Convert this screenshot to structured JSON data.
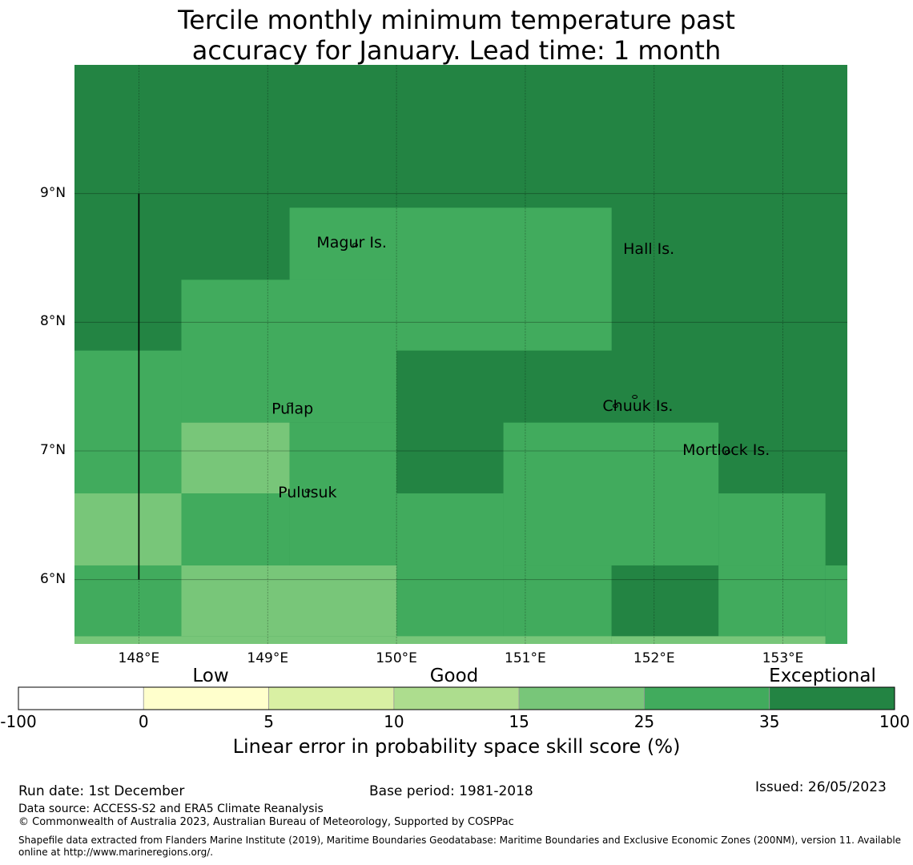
{
  "title": {
    "line1": "Tercile monthly minimum temperature past",
    "line2": "accuracy for January. Lead time: 1 month"
  },
  "map": {
    "lon_range": [
      147.5,
      153.5
    ],
    "lat_range": [
      5.5,
      10.0
    ],
    "lon_ticks": [
      148,
      149,
      150,
      151,
      152,
      153
    ],
    "lat_ticks": [
      6,
      7,
      8,
      9
    ],
    "lon_tick_labels": [
      "148°E",
      "149°E",
      "150°E",
      "151°E",
      "152°E",
      "153°E"
    ],
    "lat_tick_labels": [
      "6°N",
      "7°N",
      "8°N",
      "9°N"
    ],
    "grid_cells": [
      {
        "lon0": 147.5,
        "lon1": 153.5,
        "lat0": 5.5,
        "lat1": 10.0,
        "level": 35
      },
      {
        "lon0": 149.17,
        "lon1": 151.67,
        "lat0": 7.78,
        "lat1": 8.89,
        "level": 25
      },
      {
        "lon0": 148.33,
        "lon1": 150.0,
        "lat0": 7.22,
        "lat1": 8.33,
        "level": 25
      },
      {
        "lon0": 147.5,
        "lon1": 148.33,
        "lat0": 6.67,
        "lat1": 7.78,
        "level": 25
      },
      {
        "lon0": 148.33,
        "lon1": 149.17,
        "lat0": 6.67,
        "lat1": 7.22,
        "level": 15
      },
      {
        "lon0": 149.17,
        "lon1": 150.0,
        "lat0": 6.11,
        "lat1": 7.22,
        "level": 25
      },
      {
        "lon0": 148.33,
        "lon1": 149.17,
        "lat0": 6.11,
        "lat1": 6.67,
        "level": 25
      },
      {
        "lon0": 147.5,
        "lon1": 148.33,
        "lat0": 6.11,
        "lat1": 6.67,
        "level": 15
      },
      {
        "lon0": 150.0,
        "lon1": 150.83,
        "lat0": 5.5,
        "lat1": 6.67,
        "level": 25
      },
      {
        "lon0": 150.83,
        "lon1": 152.5,
        "lat0": 6.11,
        "lat1": 7.22,
        "level": 25
      },
      {
        "lon0": 152.5,
        "lon1": 153.33,
        "lat0": 6.11,
        "lat1": 6.67,
        "level": 25
      },
      {
        "lon0": 153.33,
        "lon1": 153.5,
        "lat0": 5.5,
        "lat1": 6.11,
        "level": 25
      },
      {
        "lon0": 147.5,
        "lon1": 148.33,
        "lat0": 5.56,
        "lat1": 6.11,
        "level": 25
      },
      {
        "lon0": 148.33,
        "lon1": 150.0,
        "lat0": 5.56,
        "lat1": 6.11,
        "level": 15
      },
      {
        "lon0": 150.83,
        "lon1": 151.67,
        "lat0": 5.5,
        "lat1": 6.11,
        "level": 25
      },
      {
        "lon0": 151.67,
        "lon1": 152.5,
        "lat0": 5.56,
        "lat1": 6.11,
        "level": 35
      },
      {
        "lon0": 152.5,
        "lon1": 153.33,
        "lat0": 5.56,
        "lat1": 6.11,
        "level": 25
      },
      {
        "lon0": 147.5,
        "lon1": 151.67,
        "lat0": 5.5,
        "lat1": 5.56,
        "level": 15
      },
      {
        "lon0": 151.67,
        "lon1": 153.33,
        "lat0": 5.5,
        "lat1": 5.56,
        "level": 15
      }
    ],
    "boundary_line": {
      "lon": 148.0,
      "lat0": 6.0,
      "lat1": 9.0
    },
    "places": [
      {
        "name": "Magur Is.",
        "lon": 149.38,
        "lat": 8.58
      },
      {
        "name": "Hall Is.",
        "lon": 151.76,
        "lat": 8.53
      },
      {
        "name": "Pulap",
        "lon": 149.03,
        "lat": 7.29
      },
      {
        "name": "Chuuk Is.",
        "lon": 151.6,
        "lat": 7.31
      },
      {
        "name": "Mortlock Is.",
        "lon": 152.22,
        "lat": 6.97
      },
      {
        "name": "Pulusuk",
        "lon": 149.08,
        "lat": 6.64
      }
    ],
    "islands": [
      {
        "lon": 149.68,
        "lat": 8.6
      },
      {
        "lon": 149.17,
        "lat": 7.36
      },
      {
        "lon": 151.7,
        "lat": 7.35
      },
      {
        "lon": 151.85,
        "lat": 7.42
      },
      {
        "lon": 152.57,
        "lat": 6.99
      },
      {
        "lon": 149.31,
        "lat": 6.69
      }
    ]
  },
  "colorbar": {
    "categories": [
      "Low",
      "Good",
      "Exceptional"
    ],
    "boundaries": [
      "-100",
      "0",
      "5",
      "10",
      "15",
      "25",
      "35",
      "100"
    ],
    "colors": [
      "#ffffff",
      "#ffffcc",
      "#d9f0a3",
      "#addd8e",
      "#78c679",
      "#41ab5d",
      "#238443"
    ],
    "label": "Linear error in probability space skill score (%)"
  },
  "footer": {
    "run_date": "Run date: 1st December",
    "base_period": "Base period: 1981-2018",
    "issued": "Issued: 26/05/2023",
    "data_source": "Data source: ACCESS-S2 and ERA5 Climate Reanalysis",
    "copyright": "© Commonwealth of Australia 2023, Australian Bureau of Meteorology, Supported by COSPPac",
    "shapefile": "Shapefile data extracted from Flanders Marine Institute (2019), Maritime Boundaries Geodatabase: Maritime Boundaries and Exclusive Economic Zones (200NM), version 11. Available online at http://www.marineregions.org/."
  }
}
